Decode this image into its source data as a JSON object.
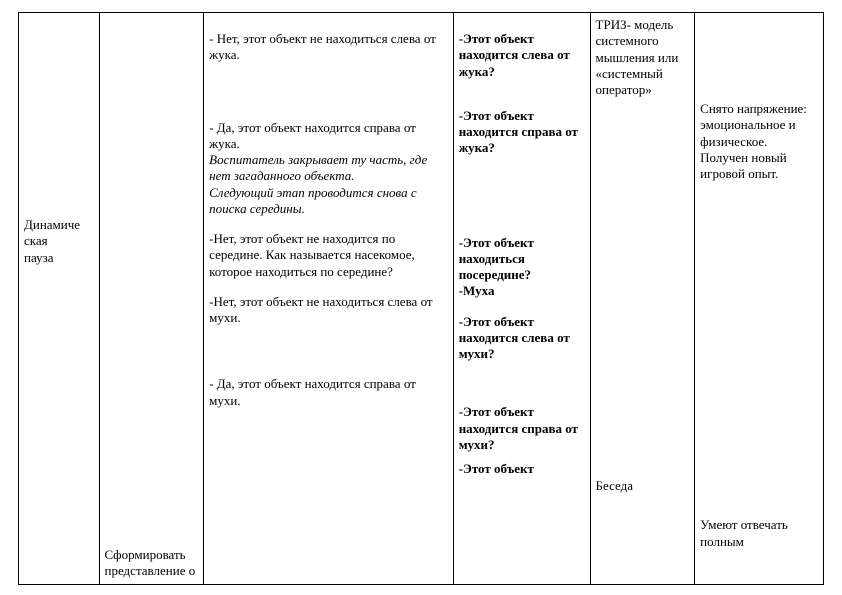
{
  "table": {
    "col1": {
      "text": "Динамиче\nская\nпауза"
    },
    "col2": {
      "text": "Сформировать представление о"
    },
    "col3": {
      "p1": "- Нет, этот объект не находиться слева от жука.",
      "p2": "- Да, этот объект находится справа от жука.",
      "p3_italic": "Воспитатель закрывает ту часть, где нет загаданного объекта.\nСледующий этап проводится снова с поиска середины.",
      "p4": "-Нет, этот объект не находится по середине.  Как называется насекомое, которое находиться по середине?",
      "p5": "-Нет, этот объект не находиться слева от мухи.",
      "p6": "- Да, этот объект находится справа от мухи."
    },
    "col4": {
      "q1": "-Этот объект находится слева от жука?",
      "q2": "-Этот объект находится справа от жука?",
      "q3": "-Этот объект находиться посередине?\n-Муха",
      "q4": "-Этот объект находится слева от мухи?",
      "q5": "-Этот объект находится справа от мухи?",
      "q6": "-Этот объект"
    },
    "col5": {
      "t1": "ТРИЗ- модель системного мышления или «системный оператор»",
      "t2": "Беседа"
    },
    "col6": {
      "r1": "Снято напряжение: эмоциональное и физическое. Получен новый игровой опыт.",
      "r2": "Умеют отвечать полным"
    }
  },
  "colors": {
    "text": "#000000",
    "border": "#000000",
    "background": "#ffffff"
  },
  "font": {
    "family": "Times New Roman",
    "size_pt": 10
  }
}
